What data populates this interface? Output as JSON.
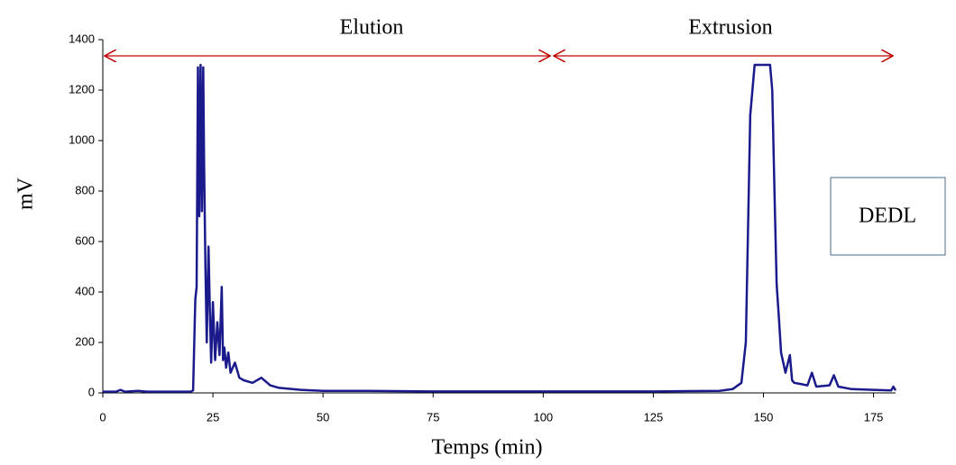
{
  "chart_data": {
    "type": "line",
    "x_label": "Temps (min)",
    "y_label": "mV",
    "annotations": [
      "Elution",
      "Extrusion"
    ],
    "box_label": "DEDL",
    "xlim": [
      0,
      180
    ],
    "xticks": [
      0,
      25,
      50,
      75,
      100,
      125,
      150,
      175
    ],
    "ylim": [
      0,
      1400
    ],
    "yticks": [
      0,
      200,
      400,
      600,
      800,
      1000,
      1200,
      1400
    ],
    "series": [
      {
        "color": "#1a1a8c",
        "x": [
          0,
          3,
          4,
          5,
          8,
          10,
          15,
          20,
          20.5,
          21,
          21.3,
          21.6,
          21.9,
          22.2,
          22.5,
          22.8,
          23,
          23.3,
          23.6,
          24,
          24.3,
          24.6,
          25,
          25.5,
          26,
          26.5,
          27,
          27.3,
          27.6,
          28,
          28.5,
          29,
          30,
          31,
          32,
          34,
          36,
          38,
          40,
          45,
          50,
          60,
          75,
          100,
          125,
          140,
          143,
          145,
          146,
          147,
          147.5,
          148,
          151,
          151.5,
          152,
          152.5,
          153,
          153.5,
          154,
          155,
          156,
          156.5,
          157,
          160,
          161,
          162,
          165,
          166,
          167,
          170,
          175,
          179,
          179.5,
          180
        ],
        "values": [
          5,
          5,
          12,
          5,
          8,
          5,
          5,
          5,
          10,
          370,
          420,
          1290,
          700,
          1300,
          720,
          1290,
          900,
          500,
          200,
          580,
          330,
          120,
          360,
          130,
          280,
          150,
          420,
          130,
          180,
          100,
          160,
          80,
          120,
          60,
          50,
          40,
          60,
          30,
          20,
          12,
          8,
          8,
          6,
          6,
          6,
          8,
          15,
          40,
          200,
          1100,
          1200,
          1300,
          1300,
          1300,
          1200,
          800,
          430,
          300,
          160,
          80,
          150,
          50,
          40,
          30,
          80,
          25,
          30,
          70,
          25,
          15,
          12,
          10,
          25,
          10
        ]
      }
    ]
  }
}
